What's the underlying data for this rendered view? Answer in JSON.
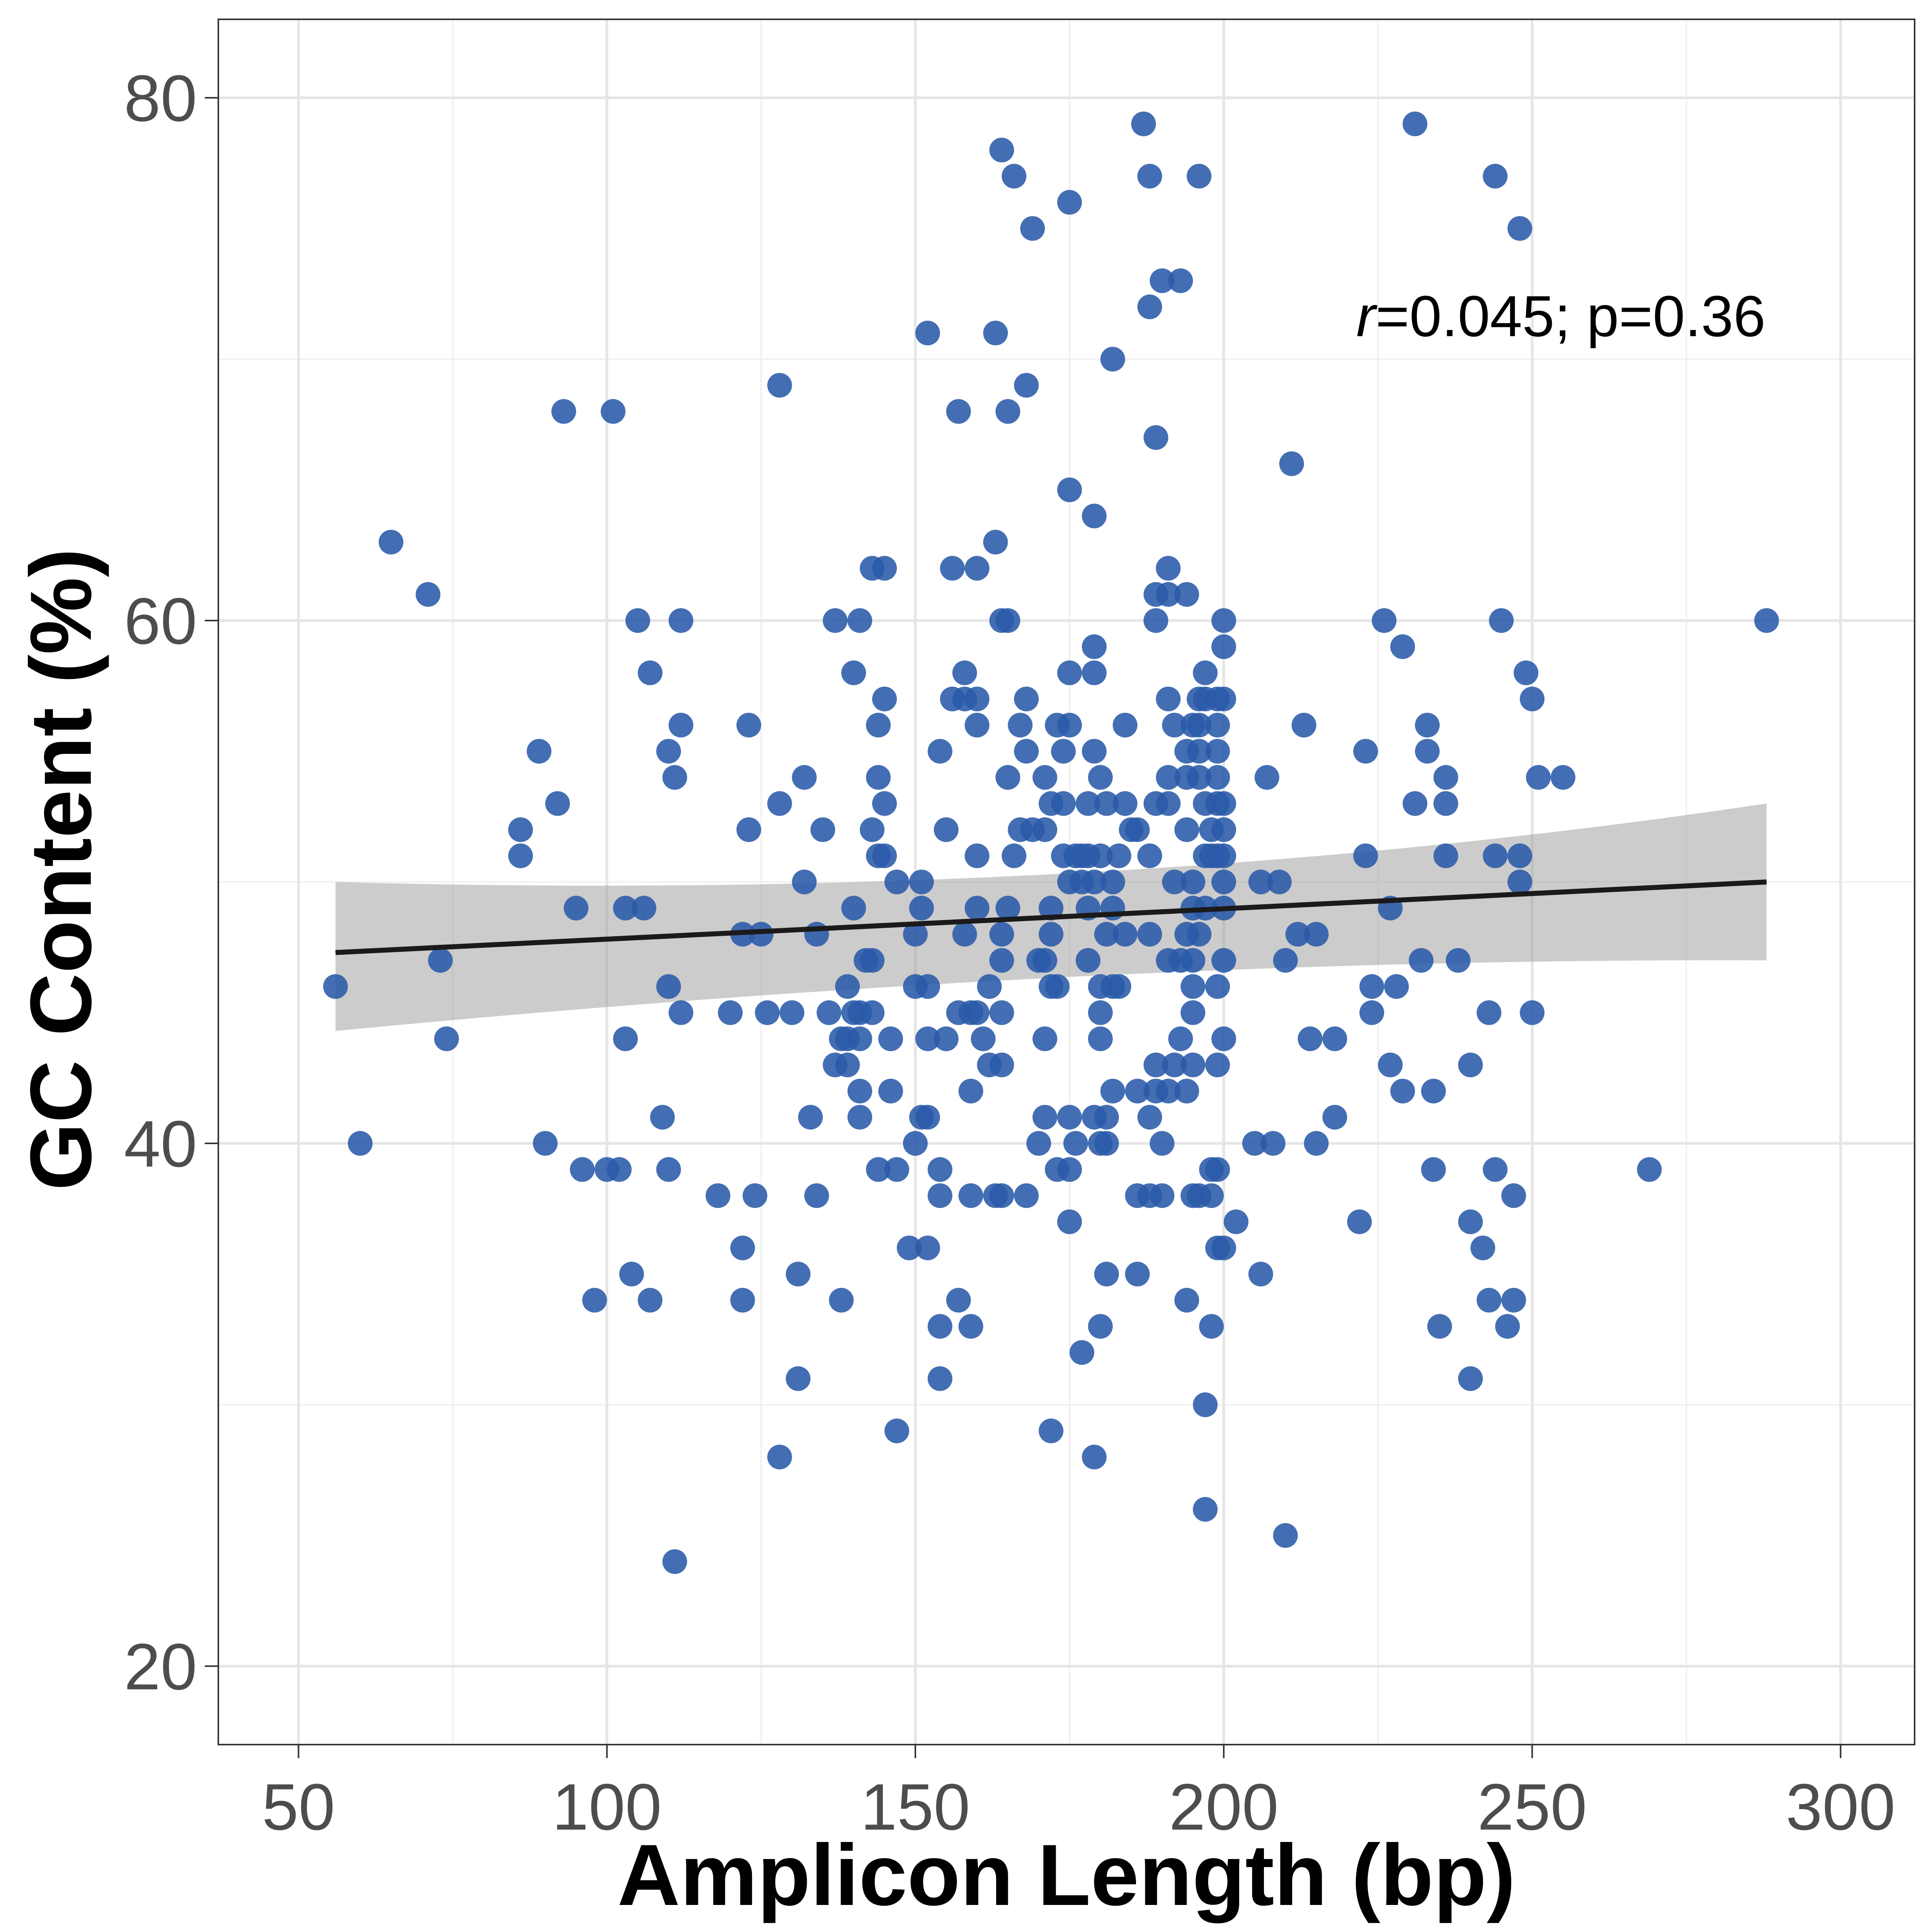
{
  "chart_data": {
    "type": "scatter",
    "title": "",
    "xlabel": "Amplicon Length (bp)",
    "ylabel": "GC Content (%)",
    "xlim": [
      37,
      312
    ],
    "ylim": [
      17,
      83
    ],
    "xticks": [
      50,
      100,
      150,
      200,
      250,
      300
    ],
    "yticks": [
      20,
      40,
      60,
      80
    ],
    "grid": true,
    "point_color": "#2a5aa8",
    "annotation": {
      "r_symbol": "r",
      "text": "=0.045; p=0.36"
    },
    "regression": {
      "x": [
        56,
        288
      ],
      "y": [
        47.3,
        50.0
      ],
      "band_upper": [
        50.0,
        53.0
      ],
      "band_lower": [
        44.3,
        47.0
      ],
      "band_mid_upper": 48.6,
      "band_mid_lower": 47.7,
      "band_mid_x": 180
    },
    "points": [
      [
        187,
        79
      ],
      [
        231,
        79
      ],
      [
        164,
        78
      ],
      [
        166,
        77
      ],
      [
        188,
        77
      ],
      [
        196,
        77
      ],
      [
        244,
        77
      ],
      [
        175,
        76
      ],
      [
        169,
        75
      ],
      [
        248,
        75
      ],
      [
        190,
        73
      ],
      [
        193,
        73
      ],
      [
        188,
        72
      ],
      [
        152,
        71
      ],
      [
        163,
        71
      ],
      [
        182,
        70
      ],
      [
        128,
        69
      ],
      [
        168,
        69
      ],
      [
        93,
        68
      ],
      [
        101,
        68
      ],
      [
        157,
        68
      ],
      [
        165,
        68
      ],
      [
        189,
        67
      ],
      [
        211,
        66
      ],
      [
        175,
        65
      ],
      [
        179,
        64
      ],
      [
        65,
        63
      ],
      [
        163,
        63
      ],
      [
        143,
        62
      ],
      [
        145,
        62
      ],
      [
        156,
        62
      ],
      [
        160,
        62
      ],
      [
        191,
        62
      ],
      [
        71,
        61
      ],
      [
        189,
        61
      ],
      [
        191,
        61
      ],
      [
        194,
        61
      ],
      [
        105,
        60
      ],
      [
        112,
        60
      ],
      [
        137,
        60
      ],
      [
        141,
        60
      ],
      [
        164,
        60
      ],
      [
        165,
        60
      ],
      [
        189,
        60
      ],
      [
        200,
        60
      ],
      [
        226,
        60
      ],
      [
        245,
        60
      ],
      [
        288,
        60
      ],
      [
        179,
        59
      ],
      [
        200,
        59
      ],
      [
        229,
        59
      ],
      [
        107,
        58
      ],
      [
        140,
        58
      ],
      [
        158,
        58
      ],
      [
        175,
        58
      ],
      [
        179,
        58
      ],
      [
        197,
        58
      ],
      [
        249,
        58
      ],
      [
        145,
        57
      ],
      [
        156,
        57
      ],
      [
        158,
        57
      ],
      [
        160,
        57
      ],
      [
        168,
        57
      ],
      [
        191,
        57
      ],
      [
        196,
        57
      ],
      [
        197,
        57
      ],
      [
        199,
        57
      ],
      [
        200,
        57
      ],
      [
        250,
        57
      ],
      [
        112,
        56
      ],
      [
        123,
        56
      ],
      [
        144,
        56
      ],
      [
        160,
        56
      ],
      [
        167,
        56
      ],
      [
        173,
        56
      ],
      [
        175,
        56
      ],
      [
        184,
        56
      ],
      [
        192,
        56
      ],
      [
        195,
        56
      ],
      [
        196,
        56
      ],
      [
        199,
        56
      ],
      [
        213,
        56
      ],
      [
        233,
        56
      ],
      [
        89,
        55
      ],
      [
        110,
        55
      ],
      [
        154,
        55
      ],
      [
        168,
        55
      ],
      [
        174,
        55
      ],
      [
        179,
        55
      ],
      [
        194,
        55
      ],
      [
        196,
        55
      ],
      [
        199,
        55
      ],
      [
        223,
        55
      ],
      [
        233,
        55
      ],
      [
        111,
        54
      ],
      [
        132,
        54
      ],
      [
        144,
        54
      ],
      [
        165,
        54
      ],
      [
        171,
        54
      ],
      [
        180,
        54
      ],
      [
        191,
        54
      ],
      [
        194,
        54
      ],
      [
        196,
        54
      ],
      [
        199,
        54
      ],
      [
        207,
        54
      ],
      [
        236,
        54
      ],
      [
        251,
        54
      ],
      [
        255,
        54
      ],
      [
        92,
        53
      ],
      [
        128,
        53
      ],
      [
        145,
        53
      ],
      [
        172,
        53
      ],
      [
        174,
        53
      ],
      [
        178,
        53
      ],
      [
        181,
        53
      ],
      [
        184,
        53
      ],
      [
        189,
        53
      ],
      [
        191,
        53
      ],
      [
        197,
        53
      ],
      [
        199,
        53
      ],
      [
        200,
        53
      ],
      [
        231,
        53
      ],
      [
        236,
        53
      ],
      [
        86,
        52
      ],
      [
        123,
        52
      ],
      [
        135,
        52
      ],
      [
        143,
        52
      ],
      [
        155,
        52
      ],
      [
        167,
        52
      ],
      [
        169,
        52
      ],
      [
        171,
        52
      ],
      [
        185,
        52
      ],
      [
        186,
        52
      ],
      [
        194,
        52
      ],
      [
        198,
        52
      ],
      [
        200,
        52
      ],
      [
        86,
        51
      ],
      [
        144,
        51
      ],
      [
        145,
        51
      ],
      [
        160,
        51
      ],
      [
        166,
        51
      ],
      [
        174,
        51
      ],
      [
        176,
        51
      ],
      [
        177,
        51
      ],
      [
        178,
        51
      ],
      [
        180,
        51
      ],
      [
        183,
        51
      ],
      [
        188,
        51
      ],
      [
        197,
        51
      ],
      [
        198,
        51
      ],
      [
        199,
        51
      ],
      [
        200,
        51
      ],
      [
        223,
        51
      ],
      [
        236,
        51
      ],
      [
        244,
        51
      ],
      [
        248,
        51
      ],
      [
        132,
        50
      ],
      [
        147,
        50
      ],
      [
        151,
        50
      ],
      [
        175,
        50
      ],
      [
        177,
        50
      ],
      [
        179,
        50
      ],
      [
        182,
        50
      ],
      [
        192,
        50
      ],
      [
        195,
        50
      ],
      [
        200,
        50
      ],
      [
        206,
        50
      ],
      [
        209,
        50
      ],
      [
        248,
        50
      ],
      [
        95,
        49
      ],
      [
        103,
        49
      ],
      [
        106,
        49
      ],
      [
        140,
        49
      ],
      [
        151,
        49
      ],
      [
        160,
        49
      ],
      [
        165,
        49
      ],
      [
        172,
        49
      ],
      [
        178,
        49
      ],
      [
        182,
        49
      ],
      [
        195,
        49
      ],
      [
        197,
        49
      ],
      [
        200,
        49
      ],
      [
        227,
        49
      ],
      [
        122,
        48
      ],
      [
        125,
        48
      ],
      [
        134,
        48
      ],
      [
        150,
        48
      ],
      [
        158,
        48
      ],
      [
        164,
        48
      ],
      [
        172,
        48
      ],
      [
        181,
        48
      ],
      [
        184,
        48
      ],
      [
        188,
        48
      ],
      [
        194,
        48
      ],
      [
        196,
        48
      ],
      [
        212,
        48
      ],
      [
        215,
        48
      ],
      [
        73,
        47
      ],
      [
        142,
        47
      ],
      [
        143,
        47
      ],
      [
        164,
        47
      ],
      [
        170,
        47
      ],
      [
        171,
        47
      ],
      [
        178,
        47
      ],
      [
        191,
        47
      ],
      [
        193,
        47
      ],
      [
        195,
        47
      ],
      [
        200,
        47
      ],
      [
        210,
        47
      ],
      [
        232,
        47
      ],
      [
        238,
        47
      ],
      [
        56,
        46
      ],
      [
        110,
        46
      ],
      [
        139,
        46
      ],
      [
        150,
        46
      ],
      [
        152,
        46
      ],
      [
        162,
        46
      ],
      [
        172,
        46
      ],
      [
        173,
        46
      ],
      [
        180,
        46
      ],
      [
        182,
        46
      ],
      [
        183,
        46
      ],
      [
        195,
        46
      ],
      [
        199,
        46
      ],
      [
        224,
        46
      ],
      [
        228,
        46
      ],
      [
        112,
        45
      ],
      [
        120,
        45
      ],
      [
        126,
        45
      ],
      [
        130,
        45
      ],
      [
        136,
        45
      ],
      [
        140,
        45
      ],
      [
        141,
        45
      ],
      [
        143,
        45
      ],
      [
        157,
        45
      ],
      [
        159,
        45
      ],
      [
        160,
        45
      ],
      [
        164,
        45
      ],
      [
        180,
        45
      ],
      [
        195,
        45
      ],
      [
        224,
        45
      ],
      [
        243,
        45
      ],
      [
        250,
        45
      ],
      [
        74,
        44
      ],
      [
        103,
        44
      ],
      [
        138,
        44
      ],
      [
        139,
        44
      ],
      [
        141,
        44
      ],
      [
        146,
        44
      ],
      [
        152,
        44
      ],
      [
        155,
        44
      ],
      [
        161,
        44
      ],
      [
        171,
        44
      ],
      [
        180,
        44
      ],
      [
        193,
        44
      ],
      [
        200,
        44
      ],
      [
        214,
        44
      ],
      [
        218,
        44
      ],
      [
        137,
        43
      ],
      [
        139,
        43
      ],
      [
        162,
        43
      ],
      [
        164,
        43
      ],
      [
        189,
        43
      ],
      [
        192,
        43
      ],
      [
        195,
        43
      ],
      [
        199,
        43
      ],
      [
        227,
        43
      ],
      [
        240,
        43
      ],
      [
        141,
        42
      ],
      [
        146,
        42
      ],
      [
        159,
        42
      ],
      [
        182,
        42
      ],
      [
        186,
        42
      ],
      [
        189,
        42
      ],
      [
        191,
        42
      ],
      [
        194,
        42
      ],
      [
        229,
        42
      ],
      [
        234,
        42
      ],
      [
        109,
        41
      ],
      [
        133,
        41
      ],
      [
        141,
        41
      ],
      [
        151,
        41
      ],
      [
        152,
        41
      ],
      [
        171,
        41
      ],
      [
        175,
        41
      ],
      [
        179,
        41
      ],
      [
        181,
        41
      ],
      [
        188,
        41
      ],
      [
        218,
        41
      ],
      [
        60,
        40
      ],
      [
        90,
        40
      ],
      [
        150,
        40
      ],
      [
        170,
        40
      ],
      [
        176,
        40
      ],
      [
        180,
        40
      ],
      [
        181,
        40
      ],
      [
        190,
        40
      ],
      [
        205,
        40
      ],
      [
        208,
        40
      ],
      [
        215,
        40
      ],
      [
        96,
        39
      ],
      [
        100,
        39
      ],
      [
        102,
        39
      ],
      [
        110,
        39
      ],
      [
        144,
        39
      ],
      [
        147,
        39
      ],
      [
        154,
        39
      ],
      [
        173,
        39
      ],
      [
        175,
        39
      ],
      [
        198,
        39
      ],
      [
        199,
        39
      ],
      [
        234,
        39
      ],
      [
        244,
        39
      ],
      [
        269,
        39
      ],
      [
        118,
        38
      ],
      [
        124,
        38
      ],
      [
        134,
        38
      ],
      [
        154,
        38
      ],
      [
        159,
        38
      ],
      [
        163,
        38
      ],
      [
        164,
        38
      ],
      [
        168,
        38
      ],
      [
        186,
        38
      ],
      [
        188,
        38
      ],
      [
        190,
        38
      ],
      [
        195,
        38
      ],
      [
        196,
        38
      ],
      [
        198,
        38
      ],
      [
        247,
        38
      ],
      [
        175,
        37
      ],
      [
        202,
        37
      ],
      [
        222,
        37
      ],
      [
        240,
        37
      ],
      [
        122,
        36
      ],
      [
        149,
        36
      ],
      [
        152,
        36
      ],
      [
        199,
        36
      ],
      [
        200,
        36
      ],
      [
        242,
        36
      ],
      [
        104,
        35
      ],
      [
        131,
        35
      ],
      [
        181,
        35
      ],
      [
        186,
        35
      ],
      [
        206,
        35
      ],
      [
        98,
        34
      ],
      [
        107,
        34
      ],
      [
        122,
        34
      ],
      [
        138,
        34
      ],
      [
        157,
        34
      ],
      [
        194,
        34
      ],
      [
        243,
        34
      ],
      [
        247,
        34
      ],
      [
        154,
        33
      ],
      [
        159,
        33
      ],
      [
        180,
        33
      ],
      [
        198,
        33
      ],
      [
        235,
        33
      ],
      [
        246,
        33
      ],
      [
        177,
        32
      ],
      [
        131,
        31
      ],
      [
        154,
        31
      ],
      [
        240,
        31
      ],
      [
        197,
        30
      ],
      [
        147,
        29
      ],
      [
        172,
        29
      ],
      [
        128,
        28
      ],
      [
        179,
        28
      ],
      [
        197,
        26
      ],
      [
        210,
        25
      ],
      [
        111,
        24
      ]
    ]
  }
}
